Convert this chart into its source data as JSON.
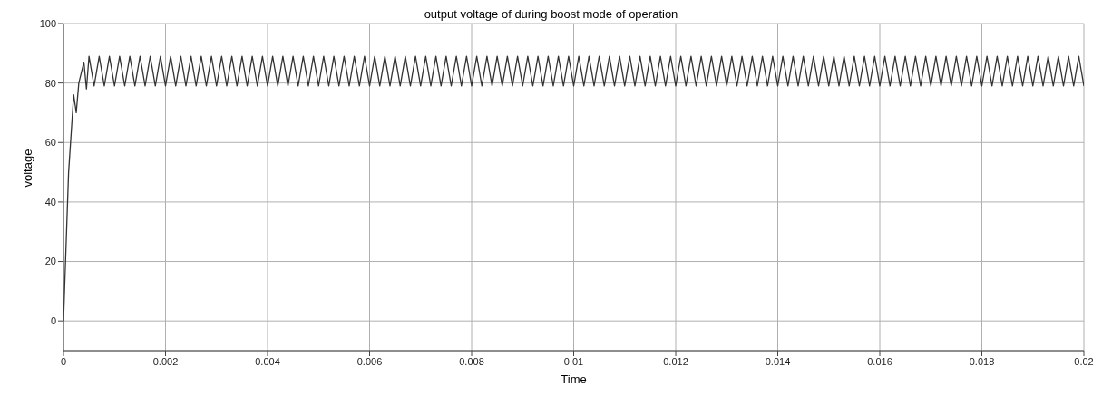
{
  "chart_data": {
    "type": "line",
    "title": "output voltage of during boost mode of operation",
    "xlabel": "Time",
    "ylabel": "voltage",
    "xlim": [
      0,
      0.02
    ],
    "xticks": [
      0,
      0.002,
      0.004,
      0.006,
      0.008,
      0.01,
      0.012,
      0.014,
      0.016,
      0.018,
      0.02
    ],
    "ylim": [
      -10,
      100
    ],
    "yticks": [
      0,
      20,
      40,
      60,
      80,
      100
    ],
    "grid": true,
    "legend": false,
    "marker": "none",
    "line_style": "solid",
    "series": [
      {
        "color": "#333333",
        "x": [
          0,
          0.0001,
          0.0002,
          0.00025,
          0.0003,
          0.0004,
          0.00045,
          0.0005,
          0.0006,
          0.0007,
          0.0008,
          0.0009,
          0.001,
          0.0011,
          0.0012,
          0.0013,
          0.0014,
          0.0015,
          0.0016,
          0.0017,
          0.0018,
          0.0019,
          0.002,
          0.0021,
          0.0022,
          0.0023,
          0.0024,
          0.0025,
          0.0026,
          0.0027,
          0.0028,
          0.0029,
          0.003,
          0.0031,
          0.0032,
          0.0033,
          0.0034,
          0.0035,
          0.0036,
          0.0037,
          0.0038,
          0.0039,
          0.004,
          0.0041,
          0.0042,
          0.0043,
          0.0044,
          0.0045,
          0.0046,
          0.0047,
          0.0048,
          0.0049,
          0.005,
          0.0051,
          0.0052,
          0.0053,
          0.0054,
          0.0055,
          0.0056,
          0.0057,
          0.0058,
          0.0059,
          0.006,
          0.0061,
          0.0062,
          0.0063,
          0.0064,
          0.0065,
          0.0066,
          0.0067,
          0.0068,
          0.0069,
          0.007,
          0.0071,
          0.0072,
          0.0073,
          0.0074,
          0.0075,
          0.0076,
          0.0077,
          0.0078,
          0.0079,
          0.008,
          0.0081,
          0.0082,
          0.0083,
          0.0084,
          0.0085,
          0.0086,
          0.0087,
          0.0088,
          0.0089,
          0.009,
          0.0091,
          0.0092,
          0.0093,
          0.0094,
          0.0095,
          0.0096,
          0.0097,
          0.0098,
          0.0099,
          0.01,
          0.0101,
          0.0102,
          0.0103,
          0.0104,
          0.0105,
          0.0106,
          0.0107,
          0.0108,
          0.0109,
          0.011,
          0.0111,
          0.0112,
          0.0113,
          0.0114,
          0.0115,
          0.0116,
          0.0117,
          0.0118,
          0.0119,
          0.012,
          0.0121,
          0.0122,
          0.0123,
          0.0124,
          0.0125,
          0.0126,
          0.0127,
          0.0128,
          0.0129,
          0.013,
          0.0131,
          0.0132,
          0.0133,
          0.0134,
          0.0135,
          0.0136,
          0.0137,
          0.0138,
          0.0139,
          0.014,
          0.0141,
          0.0142,
          0.0143,
          0.0144,
          0.0145,
          0.0146,
          0.0147,
          0.0148,
          0.0149,
          0.015,
          0.0151,
          0.0152,
          0.0153,
          0.0154,
          0.0155,
          0.0156,
          0.0157,
          0.0158,
          0.0159,
          0.016,
          0.0161,
          0.0162,
          0.0163,
          0.0164,
          0.0165,
          0.0166,
          0.0167,
          0.0168,
          0.0169,
          0.017,
          0.0171,
          0.0172,
          0.0173,
          0.0174,
          0.0175,
          0.0176,
          0.0177,
          0.0178,
          0.0179,
          0.018,
          0.0181,
          0.0182,
          0.0183,
          0.0184,
          0.0185,
          0.0186,
          0.0187,
          0.0188,
          0.0189,
          0.019,
          0.0191,
          0.0192,
          0.0193,
          0.0194,
          0.0195,
          0.0196,
          0.0197,
          0.0198,
          0.0199,
          0.02
        ],
        "values": [
          0,
          50,
          76,
          70,
          80,
          87,
          78,
          89,
          79,
          89,
          79,
          89,
          79,
          89,
          79,
          89,
          79,
          89,
          79,
          89,
          79,
          89,
          79,
          89,
          79,
          89,
          79,
          89,
          79,
          89,
          79,
          89,
          79,
          89,
          79,
          89,
          79,
          89,
          79,
          89,
          79,
          89,
          79,
          89,
          79,
          89,
          79,
          89,
          79,
          89,
          79,
          89,
          79,
          89,
          79,
          89,
          79,
          89,
          79,
          89,
          79,
          89,
          79,
          89,
          79,
          89,
          79,
          89,
          79,
          89,
          79,
          89,
          79,
          89,
          79,
          89,
          79,
          89,
          79,
          89,
          79,
          89,
          79,
          89,
          79,
          89,
          79,
          89,
          79,
          89,
          79,
          89,
          79,
          89,
          79,
          89,
          79,
          89,
          79,
          89,
          79,
          89,
          79,
          89,
          79,
          89,
          79,
          89,
          79,
          89,
          79,
          89,
          79,
          89,
          79,
          89,
          79,
          89,
          79,
          89,
          79,
          89,
          79,
          89,
          79,
          89,
          79,
          89,
          79,
          89,
          79,
          89,
          79,
          89,
          79,
          89,
          79,
          89,
          79,
          89,
          79,
          89,
          79,
          89,
          79,
          89,
          79,
          89,
          79,
          89,
          79,
          89,
          79,
          89,
          79,
          89,
          79,
          89,
          79,
          89,
          79,
          89,
          79,
          89,
          79,
          89,
          79,
          89,
          79,
          89,
          79,
          89,
          79,
          89,
          79,
          89,
          79,
          89,
          79,
          89,
          79,
          89,
          79,
          89,
          79,
          89,
          79,
          89,
          79,
          89,
          79,
          89,
          79,
          89,
          79,
          89,
          79,
          89,
          79,
          89,
          79,
          89,
          79
        ]
      }
    ]
  }
}
